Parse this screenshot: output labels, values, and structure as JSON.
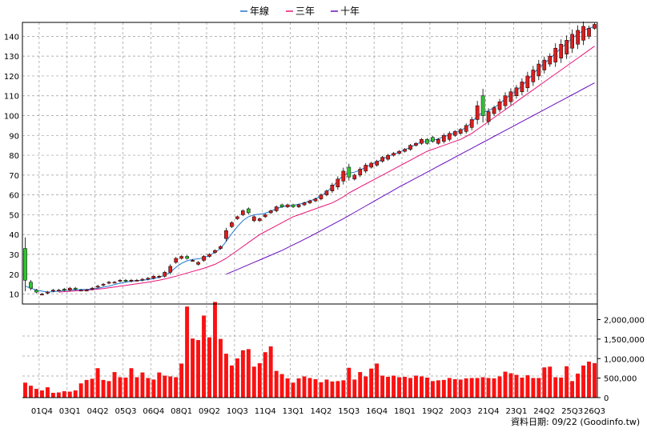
{
  "legend": [
    {
      "name": "年線",
      "color": "#1f77d0"
    },
    {
      "name": "三年",
      "color": "#e8147a"
    },
    {
      "name": "十年",
      "color": "#6a0fbf"
    }
  ],
  "footer": {
    "label": "資料日期:",
    "date": "09/22",
    "source": "(Goodinfo.tw)"
  },
  "chart_data": {
    "type": "candlestick+volume",
    "price_axis": {
      "ticks": [
        10,
        20,
        30,
        40,
        50,
        60,
        70,
        80,
        90,
        100,
        110,
        120,
        130,
        140
      ],
      "ylim": [
        5,
        147
      ]
    },
    "volume_axis": {
      "ticks": [
        0,
        500000,
        1000000,
        1500000,
        2000000
      ],
      "tick_labels": [
        "0",
        "500,000",
        "1,000,000",
        "1,500,000",
        "2,000,000"
      ],
      "ylim": [
        0,
        2400000
      ]
    },
    "x_labels": [
      "01Q4",
      "03Q1",
      "04Q2",
      "05Q3",
      "06Q4",
      "08Q1",
      "09Q2",
      "10Q3",
      "11Q4",
      "13Q1",
      "14Q2",
      "15Q3",
      "16Q4",
      "18Q1",
      "19Q2",
      "20Q3",
      "21Q4",
      "23Q1",
      "24Q2",
      "25Q3",
      "26Q3"
    ],
    "x_label_positions": [
      3,
      8,
      13,
      18,
      23,
      28,
      33,
      38,
      43,
      48,
      53,
      58,
      63,
      68,
      73,
      78,
      83,
      88,
      93,
      98,
      102
    ],
    "n_periods": 103,
    "closes": [
      17,
      13,
      11,
      10,
      11,
      12,
      12,
      12,
      13,
      12.5,
      12,
      12,
      13,
      14,
      15,
      16,
      16,
      17,
      16.5,
      17,
      17,
      17.5,
      18,
      19,
      19,
      21,
      24,
      28,
      29,
      28,
      27,
      26,
      29,
      30,
      32,
      34,
      42,
      46,
      49,
      52,
      51,
      49,
      48,
      50,
      52,
      54,
      54,
      55,
      54,
      55,
      56,
      57,
      58,
      60,
      62,
      65,
      68,
      72,
      69,
      70,
      73,
      75,
      76,
      77,
      79,
      80,
      81,
      82,
      83,
      85,
      86,
      88,
      86,
      87,
      88,
      90,
      91,
      92,
      93,
      95,
      98,
      105,
      100,
      102,
      104,
      107,
      110,
      112,
      114,
      117,
      120,
      123,
      126,
      128,
      130,
      134,
      136,
      138,
      141,
      143,
      145,
      144,
      146
    ],
    "opens": [
      33,
      16,
      12,
      10,
      10.5,
      11.5,
      12,
      12.5,
      12,
      13,
      12,
      12,
      12.5,
      13.5,
      14.5,
      15.5,
      16,
      16.5,
      17,
      16.5,
      17,
      17,
      17.5,
      18,
      18.5,
      19,
      21,
      26,
      28,
      29,
      27,
      25,
      27,
      29,
      31,
      33,
      38,
      44,
      48,
      50,
      53,
      47,
      47,
      49,
      51,
      52,
      55,
      54,
      55,
      54,
      55,
      56,
      57,
      58,
      60,
      62,
      64,
      67,
      74,
      68,
      70,
      72,
      74,
      75,
      77,
      78,
      80,
      81,
      82,
      83,
      85,
      86,
      88,
      89,
      86,
      87,
      88,
      90,
      91,
      92,
      94,
      98,
      110,
      97,
      101,
      103,
      105,
      107,
      110,
      112,
      114,
      117,
      120,
      123,
      126,
      127,
      129,
      131,
      134,
      136,
      138,
      140,
      144
    ],
    "volumes": [
      380000,
      300000,
      220000,
      180000,
      260000,
      120000,
      130000,
      160000,
      150000,
      180000,
      360000,
      450000,
      480000,
      750000,
      450000,
      420000,
      650000,
      520000,
      510000,
      750000,
      520000,
      640000,
      500000,
      460000,
      640000,
      560000,
      540000,
      520000,
      870000,
      2330000,
      1510000,
      1470000,
      2100000,
      1540000,
      2450000,
      1500000,
      1120000,
      820000,
      1000000,
      1210000,
      1240000,
      790000,
      880000,
      1160000,
      1310000,
      680000,
      600000,
      490000,
      380000,
      490000,
      540000,
      500000,
      470000,
      390000,
      460000,
      410000,
      420000,
      440000,
      760000,
      460000,
      650000,
      540000,
      740000,
      870000,
      560000,
      530000,
      560000,
      520000,
      530000,
      500000,
      560000,
      540000,
      510000,
      420000,
      440000,
      450000,
      500000,
      470000,
      460000,
      490000,
      500000,
      500000,
      520000,
      500000,
      490000,
      540000,
      660000,
      620000,
      580000,
      510000,
      570000,
      500000,
      500000,
      770000,
      790000,
      520000,
      510000,
      800000,
      420000,
      610000,
      820000,
      920000,
      880000
    ],
    "ma_year": [
      14,
      13,
      12,
      11.5,
      11,
      11.2,
      11.5,
      11.8,
      12,
      12.2,
      12.3,
      12.4,
      12.6,
      13,
      13.5,
      14,
      14.8,
      15.5,
      16,
      16.5,
      16.8,
      17,
      17.3,
      17.8,
      18.5,
      19.5,
      21,
      23.5,
      25.5,
      26.8,
      27.5,
      27.8,
      28.3,
      29.5,
      31,
      33,
      36.5,
      40.5,
      44,
      47,
      49,
      50,
      50.3,
      50.8,
      51.8,
      53,
      54,
      54.5,
      54.8,
      55.3,
      56,
      57,
      58,
      59.5,
      61.5,
      64,
      67,
      70,
      71,
      71.5,
      72.5,
      74,
      75.5,
      76.5,
      78,
      79.5,
      80.5,
      81.5,
      82.8,
      84,
      85.5,
      86.8,
      87,
      87.5,
      88.3,
      89.3,
      90.3,
      91.3,
      92.5,
      94,
      96.5,
      100,
      101.5,
      102.5,
      104,
      106,
      108.5,
      110.5,
      112.5,
      115,
      118,
      121,
      124,
      126.5,
      128.5,
      131.5,
      134,
      136.5,
      139,
      141,
      143,
      144,
      145
    ],
    "ma_3yr": [
      null,
      null,
      null,
      null,
      null,
      null,
      11,
      11.2,
      11.4,
      11.6,
      11.8,
      12,
      12.2,
      12.5,
      12.8,
      13.2,
      13.6,
      14,
      14.4,
      14.8,
      15.2,
      15.6,
      16,
      16.5,
      17,
      17.6,
      18.3,
      19,
      19.8,
      20.6,
      21.4,
      22.2,
      23,
      24,
      25,
      26.5,
      28,
      30,
      32,
      34,
      36,
      38,
      40,
      41.5,
      43,
      44.5,
      46,
      47.5,
      49,
      50,
      51,
      52,
      53,
      54,
      55,
      56,
      57.5,
      59,
      61,
      62.5,
      64,
      65.5,
      67,
      68.5,
      70,
      71.5,
      73,
      74.5,
      76,
      77.5,
      79,
      80.5,
      82,
      83,
      84,
      85,
      86,
      87,
      88,
      89.5,
      91,
      93,
      95,
      97,
      99,
      101,
      103,
      105,
      107,
      109,
      111,
      113,
      115,
      117,
      119,
      121,
      123,
      125,
      127,
      129,
      131,
      133,
      135
    ],
    "ma_10yr": [
      null,
      null,
      null,
      null,
      null,
      null,
      null,
      null,
      null,
      null,
      null,
      null,
      null,
      null,
      null,
      null,
      null,
      null,
      null,
      null,
      null,
      null,
      null,
      null,
      null,
      null,
      null,
      null,
      null,
      null,
      null,
      null,
      null,
      null,
      null,
      null,
      20,
      21.2,
      22.4,
      23.6,
      24.8,
      26,
      27.2,
      28.4,
      29.6,
      30.8,
      32,
      33.4,
      34.8,
      36.2,
      37.6,
      39,
      40.5,
      42,
      43.5,
      45,
      46.5,
      48,
      49.6,
      51.2,
      52.8,
      54.4,
      56,
      57.6,
      59.2,
      60.8,
      62.4,
      64,
      65.5,
      67,
      68.5,
      70,
      71.5,
      73,
      74.5,
      76,
      77.5,
      79,
      80.5,
      82,
      83.5,
      85,
      86.5,
      88,
      89.5,
      91,
      92.5,
      94,
      95.5,
      97,
      98.5,
      100,
      101.5,
      103,
      104.5,
      106,
      107.5,
      109,
      110.5,
      112,
      113.5,
      115,
      116.5
    ]
  }
}
